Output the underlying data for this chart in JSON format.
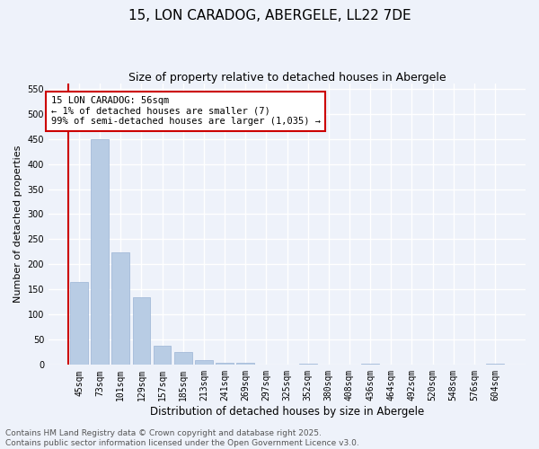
{
  "title": "15, LON CARADOG, ABERGELE, LL22 7DE",
  "subtitle": "Size of property relative to detached houses in Abergele",
  "xlabel": "Distribution of detached houses by size in Abergele",
  "ylabel": "Number of detached properties",
  "categories": [
    "45sqm",
    "73sqm",
    "101sqm",
    "129sqm",
    "157sqm",
    "185sqm",
    "213sqm",
    "241sqm",
    "269sqm",
    "297sqm",
    "325sqm",
    "352sqm",
    "380sqm",
    "408sqm",
    "436sqm",
    "464sqm",
    "492sqm",
    "520sqm",
    "548sqm",
    "576sqm",
    "604sqm"
  ],
  "values": [
    165,
    450,
    224,
    135,
    38,
    26,
    10,
    5,
    5,
    0,
    0,
    3,
    0,
    0,
    3,
    0,
    0,
    0,
    0,
    0,
    3
  ],
  "bar_color": "#b8cce4",
  "bar_edgecolor": "#9ab3d5",
  "highlight_color": "#cc0000",
  "annotation_text": "15 LON CARADOG: 56sqm\n← 1% of detached houses are smaller (7)\n99% of semi-detached houses are larger (1,035) →",
  "annotation_box_edgecolor": "#cc0000",
  "ylim": [
    0,
    560
  ],
  "yticks": [
    0,
    50,
    100,
    150,
    200,
    250,
    300,
    350,
    400,
    450,
    500,
    550
  ],
  "background_color": "#eef2fa",
  "grid_color": "#ffffff",
  "footer_text": "Contains HM Land Registry data © Crown copyright and database right 2025.\nContains public sector information licensed under the Open Government Licence v3.0.",
  "title_fontsize": 11,
  "subtitle_fontsize": 9,
  "xlabel_fontsize": 8.5,
  "ylabel_fontsize": 8,
  "tick_fontsize": 7,
  "annotation_fontsize": 7.5,
  "footer_fontsize": 6.5
}
